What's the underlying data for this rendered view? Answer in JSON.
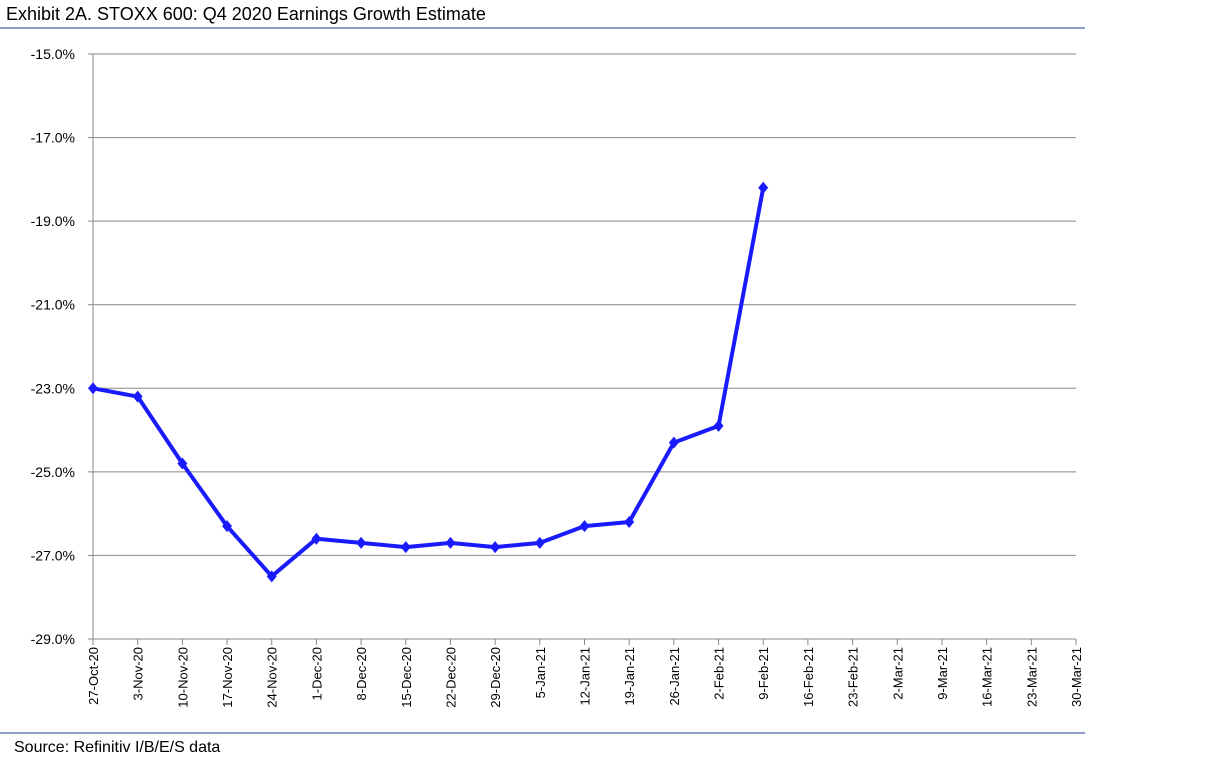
{
  "chart_data": {
    "type": "line",
    "title": "Exhibit 2A.  STOXX 600: Q4 2020 Earnings Growth Estimate",
    "source": "Source: Refinitiv I/B/E/S data",
    "categories": [
      "27-Oct-20",
      "3-Nov-20",
      "10-Nov-20",
      "17-Nov-20",
      "24-Nov-20",
      "1-Dec-20",
      "8-Dec-20",
      "15-Dec-20",
      "22-Dec-20",
      "29-Dec-20",
      "5-Jan-21",
      "12-Jan-21",
      "19-Jan-21",
      "26-Jan-21",
      "2-Feb-21",
      "9-Feb-21",
      "16-Feb-21",
      "23-Feb-21",
      "2-Mar-21",
      "9-Mar-21",
      "16-Mar-21",
      "23-Mar-21",
      "30-Mar-21"
    ],
    "series": [
      {
        "name": "STOXX 600 Q4 2020 Earnings Growth Estimate",
        "color": "#1a1aff",
        "values": [
          -23.0,
          -23.2,
          -24.8,
          -26.3,
          -27.5,
          -26.6,
          -26.7,
          -26.8,
          -26.7,
          -26.8,
          -26.7,
          -26.3,
          -26.2,
          -24.3,
          -23.9,
          -18.2,
          null,
          null,
          null,
          null,
          null,
          null,
          null
        ]
      }
    ],
    "ylim": [
      -29,
      -15
    ],
    "yticks": [
      {
        "value": -29,
        "label": "-29.0%"
      },
      {
        "value": -27,
        "label": "-27.0%"
      },
      {
        "value": -25,
        "label": "-25.0%"
      },
      {
        "value": -23,
        "label": "-23.0%"
      },
      {
        "value": -21,
        "label": "-21.0%"
      },
      {
        "value": -19,
        "label": "-19.0%"
      },
      {
        "value": -17,
        "label": "-17.0%"
      },
      {
        "value": -15,
        "label": "-15.0%"
      }
    ],
    "grid": true
  }
}
